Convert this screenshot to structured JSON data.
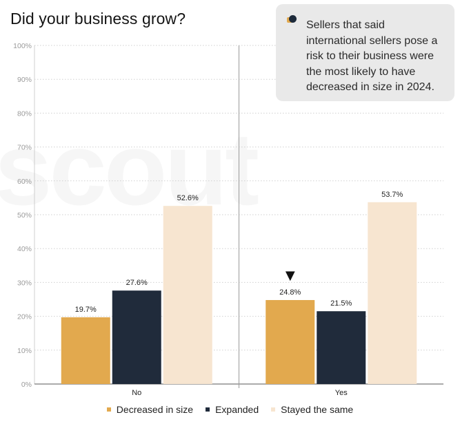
{
  "title": "Did your business grow?",
  "watermark": "scout",
  "callout": {
    "icon": "chat-bubble-icon",
    "text": "Sellers that said international sellers pose a risk to their business were the most likely to have decreased in size in 2024."
  },
  "colors": {
    "decreased": "#e2a94e",
    "expanded": "#202b3b",
    "same": "#f7e5d0",
    "grid": "#cfcfcf",
    "axis": "#555555",
    "tick": "#9a9a9a"
  },
  "chart_data": {
    "type": "bar",
    "categories": [
      "No",
      "Yes"
    ],
    "series": [
      {
        "name": "Decreased in size",
        "values": [
          19.7,
          24.8
        ]
      },
      {
        "name": "Expanded",
        "values": [
          27.6,
          21.5
        ]
      },
      {
        "name": "Stayed the same",
        "values": [
          52.6,
          53.7
        ]
      }
    ],
    "data_labels": [
      [
        "19.7%",
        "24.8%"
      ],
      [
        "27.6%",
        "21.5%"
      ],
      [
        "52.6%",
        "53.7%"
      ]
    ],
    "ylim": [
      0,
      100
    ],
    "yticks": [
      "0%",
      "10%",
      "20%",
      "30%",
      "40%",
      "50%",
      "60%",
      "70%",
      "80%",
      "90%",
      "100%"
    ],
    "highlight": {
      "series": 0,
      "category": 1,
      "marker": "▼"
    },
    "title": "Did your business grow?",
    "xlabel": "",
    "ylabel": ""
  }
}
